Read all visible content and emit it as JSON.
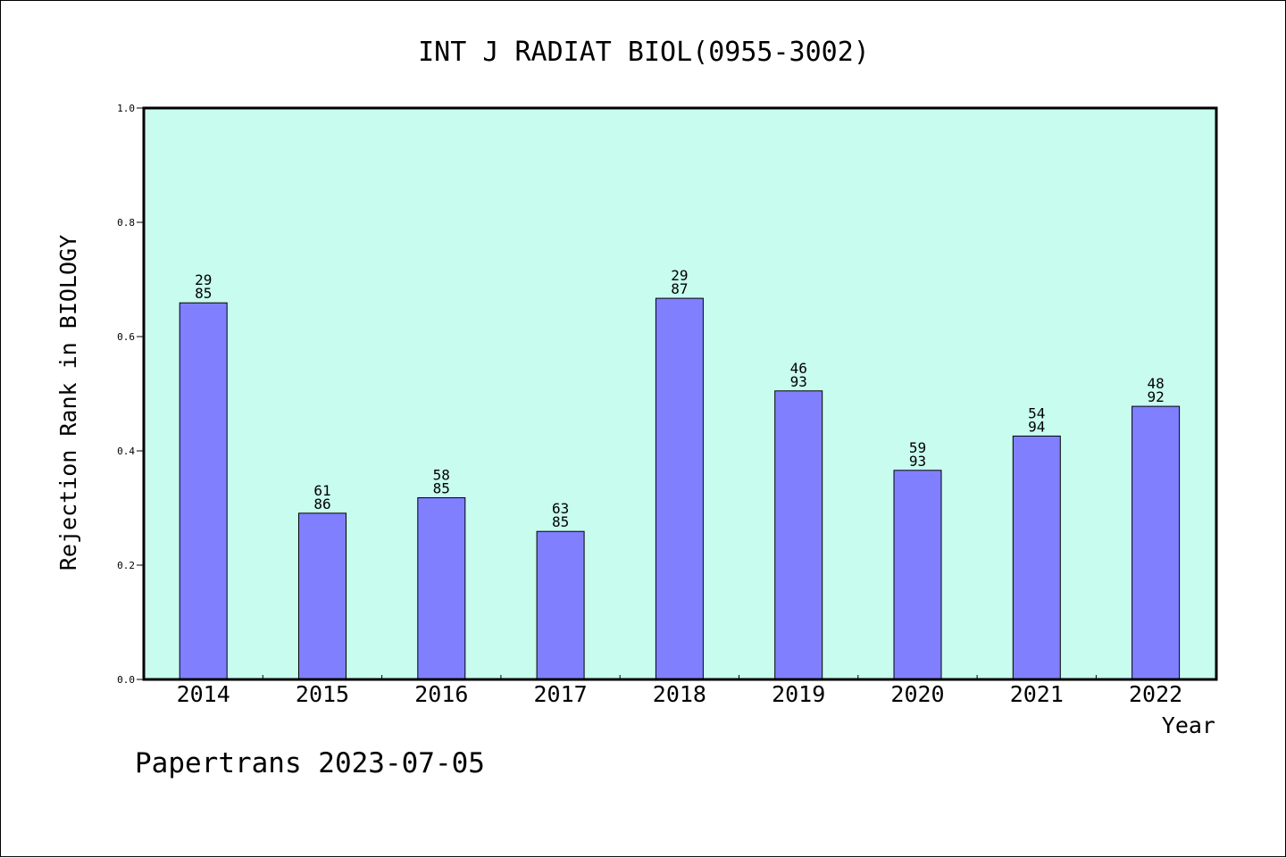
{
  "chart_data": {
    "type": "bar",
    "title": "INT J RADIAT BIOL(0955-3002)",
    "xlabel": "Year",
    "ylabel": "Rejection Rank in BIOLOGY",
    "ylim": [
      0,
      1.0
    ],
    "yticks": [
      "0.0",
      "0.2",
      "0.4",
      "0.6",
      "0.8",
      "1.0"
    ],
    "categories": [
      "2014",
      "2015",
      "2016",
      "2017",
      "2018",
      "2019",
      "2020",
      "2021",
      "2022"
    ],
    "values": [
      0.659,
      0.291,
      0.318,
      0.259,
      0.667,
      0.505,
      0.366,
      0.426,
      0.478
    ],
    "labels": [
      [
        "29",
        "85"
      ],
      [
        "61",
        "86"
      ],
      [
        "58",
        "85"
      ],
      [
        "63",
        "85"
      ],
      [
        "29",
        "87"
      ],
      [
        "46",
        "93"
      ],
      [
        "59",
        "93"
      ],
      [
        "54",
        "94"
      ],
      [
        "48",
        "92"
      ]
    ],
    "grid": false,
    "colors": {
      "plot_background": "#c8fcee",
      "bar_fill": "#8080ff",
      "bar_stroke": "#000000"
    }
  },
  "footer": {
    "watermark": "Papertrans 2023-07-05"
  }
}
